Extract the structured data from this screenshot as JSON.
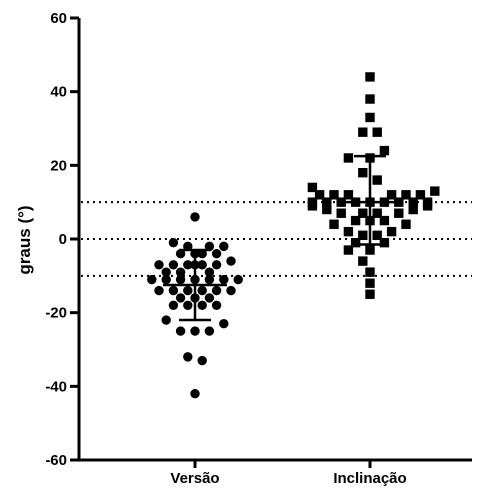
{
  "chart_data": {
    "type": "scatter",
    "title": "",
    "xlabel": "",
    "ylabel": "graus (°)",
    "ylim": [
      -60,
      60
    ],
    "yticks": [
      -60,
      -40,
      -20,
      0,
      20,
      40,
      60
    ],
    "categories": [
      "Versão",
      "Inclinação"
    ],
    "reference_lines": [
      10,
      0,
      -10
    ],
    "series": [
      {
        "category": "Versão",
        "marker": "circle",
        "mean": -12.5,
        "sd_upper": -3,
        "sd_lower": -22,
        "points": [
          {
            "slot": 0,
            "y": 6
          },
          {
            "slot": -3,
            "y": -1
          },
          {
            "slot": -1,
            "y": -2
          },
          {
            "slot": 2,
            "y": -2
          },
          {
            "slot": 4,
            "y": -2
          },
          {
            "slot": -2,
            "y": -4
          },
          {
            "slot": 0,
            "y": -4
          },
          {
            "slot": 1,
            "y": -4
          },
          {
            "slot": 3,
            "y": -4
          },
          {
            "slot": -5,
            "y": -7
          },
          {
            "slot": -3,
            "y": -7
          },
          {
            "slot": -1,
            "y": -7
          },
          {
            "slot": 0,
            "y": -7
          },
          {
            "slot": 1,
            "y": -7
          },
          {
            "slot": 3,
            "y": -7
          },
          {
            "slot": 5,
            "y": -6
          },
          {
            "slot": -4,
            "y": -9
          },
          {
            "slot": -2,
            "y": -9
          },
          {
            "slot": 2,
            "y": -9
          },
          {
            "slot": -6,
            "y": -11
          },
          {
            "slot": -4,
            "y": -11
          },
          {
            "slot": -2,
            "y": -11
          },
          {
            "slot": 0,
            "y": -11
          },
          {
            "slot": 2,
            "y": -11
          },
          {
            "slot": 4,
            "y": -11
          },
          {
            "slot": 6,
            "y": -11
          },
          {
            "slot": -5,
            "y": -14
          },
          {
            "slot": -3,
            "y": -14
          },
          {
            "slot": -1,
            "y": -14
          },
          {
            "slot": 1,
            "y": -14
          },
          {
            "slot": 3,
            "y": -14
          },
          {
            "slot": 5,
            "y": -14
          },
          {
            "slot": -2,
            "y": -16
          },
          {
            "slot": 0,
            "y": -16
          },
          {
            "slot": 2,
            "y": -16
          },
          {
            "slot": -3,
            "y": -18
          },
          {
            "slot": -1,
            "y": -18
          },
          {
            "slot": 1,
            "y": -18
          },
          {
            "slot": 3,
            "y": -18
          },
          {
            "slot": -4,
            "y": -22
          },
          {
            "slot": 4,
            "y": -23
          },
          {
            "slot": -2,
            "y": -25
          },
          {
            "slot": 0,
            "y": -25
          },
          {
            "slot": 2,
            "y": -25
          },
          {
            "slot": -1,
            "y": -32
          },
          {
            "slot": 1,
            "y": -33
          },
          {
            "slot": 0,
            "y": -42
          }
        ]
      },
      {
        "category": "Inclinação",
        "marker": "square",
        "mean": 10,
        "sd_upper": 22.5,
        "sd_lower": -1.5,
        "points": [
          {
            "slot": 0,
            "y": 44
          },
          {
            "slot": 0,
            "y": 38
          },
          {
            "slot": 0,
            "y": 33
          },
          {
            "slot": -1,
            "y": 29
          },
          {
            "slot": 1,
            "y": 29
          },
          {
            "slot": -3,
            "y": 22
          },
          {
            "slot": 0,
            "y": 22
          },
          {
            "slot": 2,
            "y": 24
          },
          {
            "slot": -1,
            "y": 18
          },
          {
            "slot": 1,
            "y": 16
          },
          {
            "slot": -8,
            "y": 14
          },
          {
            "slot": 9,
            "y": 13
          },
          {
            "slot": -7,
            "y": 12
          },
          {
            "slot": -5,
            "y": 12
          },
          {
            "slot": -3,
            "y": 12
          },
          {
            "slot": 3,
            "y": 12
          },
          {
            "slot": 5,
            "y": 12
          },
          {
            "slot": 7,
            "y": 12
          },
          {
            "slot": -8,
            "y": 10
          },
          {
            "slot": -6,
            "y": 10
          },
          {
            "slot": -4,
            "y": 10
          },
          {
            "slot": -2,
            "y": 10
          },
          {
            "slot": 0,
            "y": 10
          },
          {
            "slot": 2,
            "y": 10
          },
          {
            "slot": 4,
            "y": 10
          },
          {
            "slot": 6,
            "y": 10
          },
          {
            "slot": 8,
            "y": 10
          },
          {
            "slot": -8,
            "y": 9
          },
          {
            "slot": -6,
            "y": 8
          },
          {
            "slot": 6,
            "y": 8
          },
          {
            "slot": 8,
            "y": 9
          },
          {
            "slot": -4,
            "y": 7
          },
          {
            "slot": -1,
            "y": 7
          },
          {
            "slot": 1,
            "y": 7
          },
          {
            "slot": 4,
            "y": 7
          },
          {
            "slot": -2,
            "y": 5
          },
          {
            "slot": 0,
            "y": 5
          },
          {
            "slot": 2,
            "y": 5
          },
          {
            "slot": -5,
            "y": 4
          },
          {
            "slot": 5,
            "y": 4
          },
          {
            "slot": -3,
            "y": 2
          },
          {
            "slot": 3,
            "y": 2
          },
          {
            "slot": -1,
            "y": 1
          },
          {
            "slot": 1,
            "y": 1
          },
          {
            "slot": -2,
            "y": -1
          },
          {
            "slot": 2,
            "y": -1
          },
          {
            "slot": -3,
            "y": -3
          },
          {
            "slot": 0,
            "y": -3
          },
          {
            "slot": -1,
            "y": -6
          },
          {
            "slot": 0,
            "y": -9
          },
          {
            "slot": 0,
            "y": -12
          },
          {
            "slot": 0,
            "y": -15
          }
        ]
      }
    ]
  }
}
